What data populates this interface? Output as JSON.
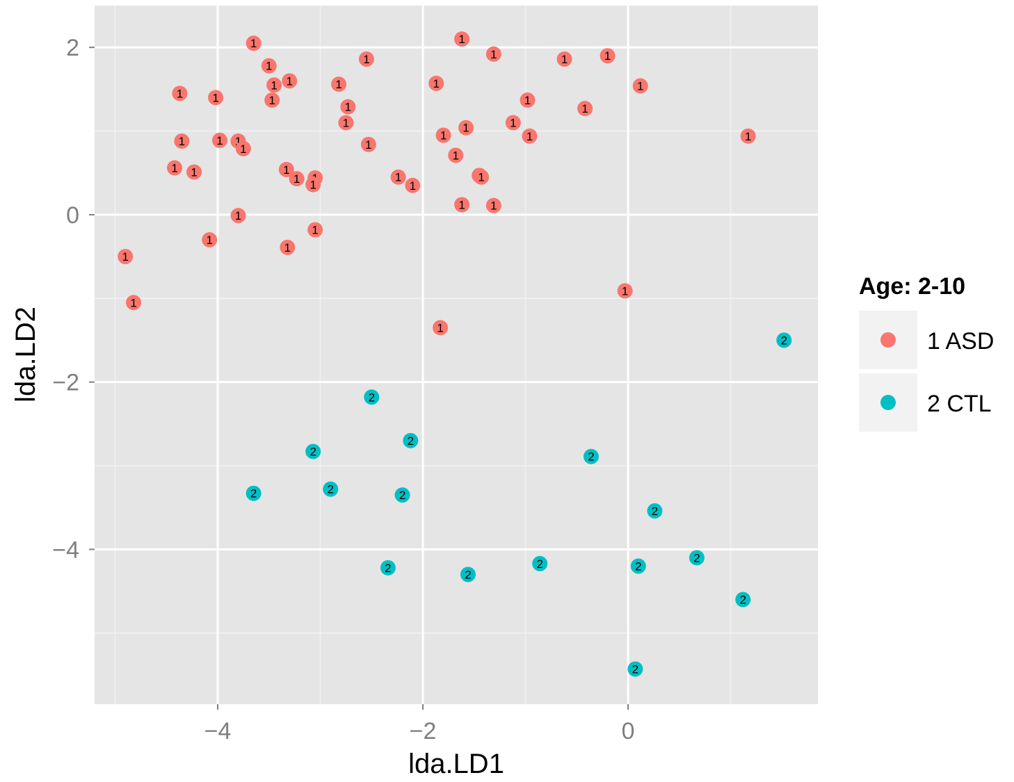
{
  "chart_data": {
    "type": "scatter",
    "title": "",
    "xlabel": "lda.LD1",
    "ylabel": "lda.LD2",
    "xlim": [
      -5.2,
      1.85
    ],
    "ylim": [
      -5.85,
      2.5
    ],
    "x_ticks": [
      -4,
      -2,
      0
    ],
    "x_tick_labels": [
      "−4",
      "−2",
      "0"
    ],
    "y_ticks": [
      2,
      0,
      -2,
      -4
    ],
    "y_tick_labels": [
      "2",
      "0",
      "−2",
      "−4"
    ],
    "grid": true,
    "legend": {
      "title": "Age: 2-10",
      "position": "right",
      "entries": [
        {
          "label": "1 ASD",
          "color": "#F8766D"
        },
        {
          "label": "2 CTL",
          "color": "#00BFC4"
        }
      ]
    },
    "colors": {
      "panel": "#E5E5E5",
      "grid_major": "#FFFFFF",
      "grid_minor": "#F2F2F2",
      "legend_key_bg": "#F2F2F2"
    },
    "series": [
      {
        "name": "1 ASD",
        "marker_label": "1",
        "color": "#F8766D",
        "points": [
          [
            -3.65,
            2.05
          ],
          [
            -3.5,
            1.78
          ],
          [
            -3.45,
            1.55
          ],
          [
            -3.3,
            1.6
          ],
          [
            -3.47,
            1.37
          ],
          [
            -4.37,
            1.45
          ],
          [
            -4.02,
            1.4
          ],
          [
            -4.35,
            0.88
          ],
          [
            -3.98,
            0.89
          ],
          [
            -3.8,
            0.88
          ],
          [
            -3.75,
            0.79
          ],
          [
            -4.42,
            0.56
          ],
          [
            -4.23,
            0.51
          ],
          [
            -3.33,
            0.54
          ],
          [
            -3.23,
            0.43
          ],
          [
            -3.05,
            0.44
          ],
          [
            -3.07,
            0.36
          ],
          [
            -3.8,
            -0.01
          ],
          [
            -4.08,
            -0.3
          ],
          [
            -3.32,
            -0.39
          ],
          [
            -3.05,
            -0.18
          ],
          [
            -4.9,
            -0.5
          ],
          [
            -4.82,
            -1.05
          ],
          [
            -1.62,
            2.1
          ],
          [
            -2.55,
            1.86
          ],
          [
            -1.31,
            1.92
          ],
          [
            -2.82,
            1.56
          ],
          [
            -2.73,
            1.29
          ],
          [
            -2.75,
            1.1
          ],
          [
            -2.53,
            0.84
          ],
          [
            -1.87,
            1.57
          ],
          [
            -1.8,
            0.95
          ],
          [
            -1.58,
            1.04
          ],
          [
            -1.68,
            0.71
          ],
          [
            -1.45,
            0.47
          ],
          [
            -1.43,
            0.45
          ],
          [
            -2.24,
            0.45
          ],
          [
            -2.1,
            0.35
          ],
          [
            -1.62,
            0.12
          ],
          [
            -1.31,
            0.11
          ],
          [
            -1.12,
            1.1
          ],
          [
            -0.98,
            1.37
          ],
          [
            -0.96,
            0.94
          ],
          [
            -0.62,
            1.86
          ],
          [
            -0.42,
            1.27
          ],
          [
            -0.2,
            1.9
          ],
          [
            0.12,
            1.54
          ],
          [
            1.17,
            0.94
          ],
          [
            -0.03,
            -0.91
          ],
          [
            -1.83,
            -1.35
          ]
        ]
      },
      {
        "name": "2 CTL",
        "marker_label": "2",
        "color": "#00BFC4",
        "points": [
          [
            1.52,
            -1.5
          ],
          [
            -2.5,
            -2.18
          ],
          [
            -2.12,
            -2.7
          ],
          [
            -3.07,
            -2.83
          ],
          [
            -3.65,
            -3.33
          ],
          [
            -2.9,
            -3.28
          ],
          [
            -2.2,
            -3.35
          ],
          [
            -0.36,
            -2.89
          ],
          [
            0.26,
            -3.54
          ],
          [
            -2.34,
            -4.22
          ],
          [
            -1.56,
            -4.3
          ],
          [
            -0.86,
            -4.17
          ],
          [
            0.1,
            -4.2
          ],
          [
            0.67,
            -4.1
          ],
          [
            1.12,
            -4.6
          ],
          [
            0.07,
            -5.43
          ]
        ]
      }
    ]
  }
}
